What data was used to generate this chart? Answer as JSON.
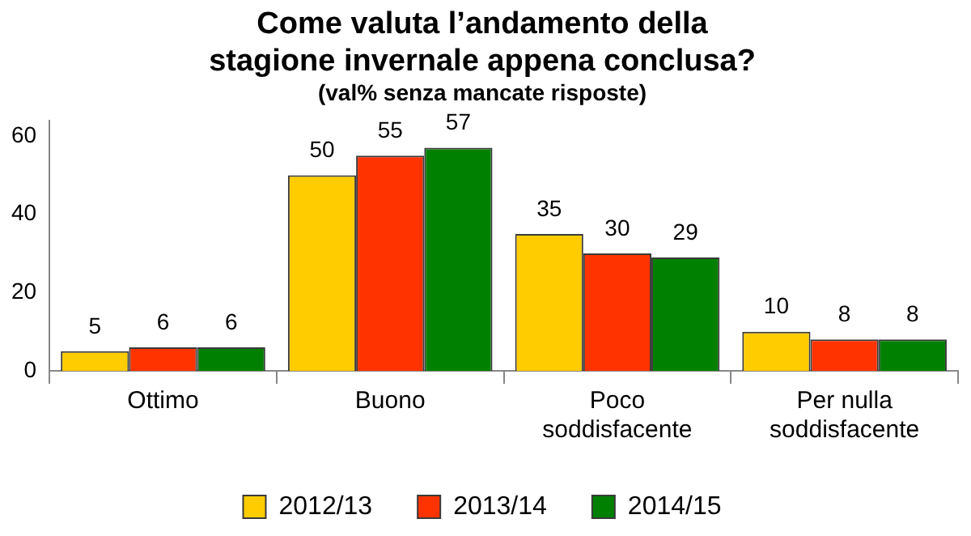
{
  "chart_data": {
    "type": "bar",
    "title": "Come valuta l’andamento della stagione invernale appena conclusa?",
    "subtitle": "(val% senza mancate risposte)",
    "categories": [
      "Ottimo",
      "Buono",
      "Poco soddisfacente",
      "Per nulla soddisfacente"
    ],
    "series": [
      {
        "name": "2012/13",
        "color": "#ffcc00",
        "values": [
          5,
          50,
          35,
          10
        ]
      },
      {
        "name": "2013/14",
        "color": "#ff3300",
        "values": [
          6,
          55,
          30,
          8
        ]
      },
      {
        "name": "2014/15",
        "color": "#008000",
        "values": [
          6,
          57,
          29,
          8
        ]
      }
    ],
    "ylim": [
      0,
      64
    ],
    "yticks": [
      0,
      20,
      40,
      60
    ],
    "grid": false,
    "legend": "bottom",
    "data_labels": true
  }
}
